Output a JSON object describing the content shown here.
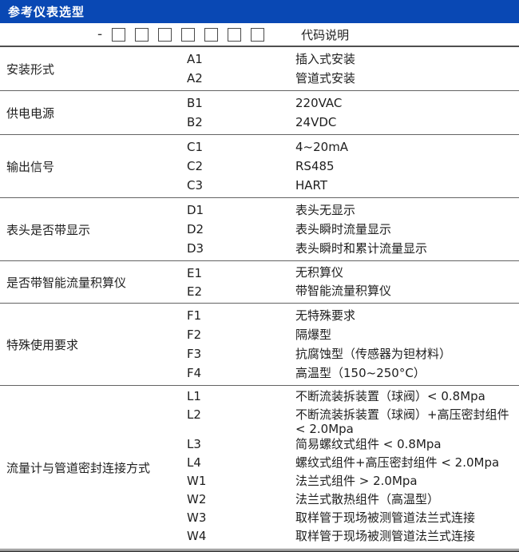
{
  "header": {
    "title": "参考仪表选型",
    "accent_color": "#0948b4"
  },
  "selector_row": {
    "dash": "-",
    "placeholder_box_count": 7,
    "label": "代码说明"
  },
  "sections": [
    {
      "category": "安装形式",
      "options": [
        {
          "code": "A1",
          "desc": "插入式安装"
        },
        {
          "code": "A2",
          "desc": "管道式安装"
        }
      ]
    },
    {
      "category": "供电电源",
      "options": [
        {
          "code": "B1",
          "desc": "220VAC"
        },
        {
          "code": "B2",
          "desc": "24VDC"
        }
      ]
    },
    {
      "category": "输出信号",
      "options": [
        {
          "code": "C1",
          "desc": "4~20mA"
        },
        {
          "code": "C2",
          "desc": "RS485"
        },
        {
          "code": "C3",
          "desc": "HART"
        }
      ]
    },
    {
      "category": "表头是否带显示",
      "options": [
        {
          "code": "D1",
          "desc": "表头无显示"
        },
        {
          "code": "D2",
          "desc": "表头瞬时流量显示"
        },
        {
          "code": "D3",
          "desc": "表头瞬时和累计流量显示"
        }
      ]
    },
    {
      "category": "是否带智能流量积算仪",
      "options": [
        {
          "code": "E1",
          "desc": "无积算仪"
        },
        {
          "code": "E2",
          "desc": "带智能流量积算仪"
        }
      ]
    },
    {
      "category": "特殊使用要求",
      "options": [
        {
          "code": "F1",
          "desc": "无特殊要求"
        },
        {
          "code": "F2",
          "desc": "隔爆型"
        },
        {
          "code": "F3",
          "desc": "抗腐蚀型（传感器为钽材料）"
        },
        {
          "code": "F4",
          "desc": "高温型（150~250°C）"
        }
      ]
    },
    {
      "category": "流量计与管道密封连接方式",
      "options": [
        {
          "code": "L1",
          "desc": "不断流装拆装置（球阀）< 0.8Mpa"
        },
        {
          "code": "L2",
          "desc": "不断流装拆装置（球阀）+高压密封组件 < 2.0Mpa"
        },
        {
          "code": "L3",
          "desc": "简易螺纹式组件 < 0.8Mpa"
        },
        {
          "code": "L4",
          "desc": "螺纹式组件+高压密封组件 < 2.0Mpa"
        },
        {
          "code": "W1",
          "desc": "法兰式组件 > 2.0Mpa"
        },
        {
          "code": "W2",
          "desc": "法兰式散热组件（高温型）"
        },
        {
          "code": "W3",
          "desc": "取样管于现场被测管道法兰式连接"
        },
        {
          "code": "W4",
          "desc": "取样管于现场被测管道法兰式连接"
        }
      ]
    }
  ]
}
